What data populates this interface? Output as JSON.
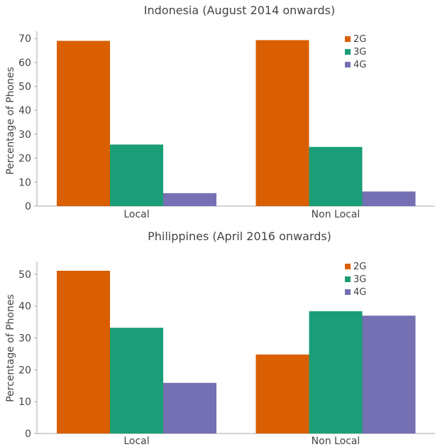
{
  "colors": {
    "2G": "#d95f02",
    "3G": "#1b9e77",
    "4G": "#7570b3"
  },
  "chart_data": [
    {
      "type": "bar",
      "title": "Indonesia (August 2014 onwards)",
      "ylabel": "Percentage of Phones",
      "categories": [
        "Local",
        "Non Local"
      ],
      "series": [
        {
          "name": "2G",
          "values": [
            69,
            69.3
          ]
        },
        {
          "name": "3G",
          "values": [
            25.7,
            24.7
          ]
        },
        {
          "name": "4G",
          "values": [
            5.4,
            6.1
          ]
        }
      ],
      "ylim": [
        0,
        73
      ],
      "yticks": [
        0,
        10,
        20,
        30,
        40,
        50,
        60,
        70
      ],
      "grid": false,
      "legend": "top-right"
    },
    {
      "type": "bar",
      "title": "Philippines (April 2016 onwards)",
      "ylabel": "Percentage of Phones",
      "categories": [
        "Local",
        "Non Local"
      ],
      "series": [
        {
          "name": "2G",
          "values": [
            51.1,
            24.8
          ]
        },
        {
          "name": "3G",
          "values": [
            33.2,
            38.4
          ]
        },
        {
          "name": "4G",
          "values": [
            15.9,
            37
          ]
        }
      ],
      "ylim": [
        0,
        54
      ],
      "yticks": [
        0,
        10,
        20,
        30,
        40,
        50
      ],
      "grid": false,
      "legend": "top-right"
    }
  ]
}
